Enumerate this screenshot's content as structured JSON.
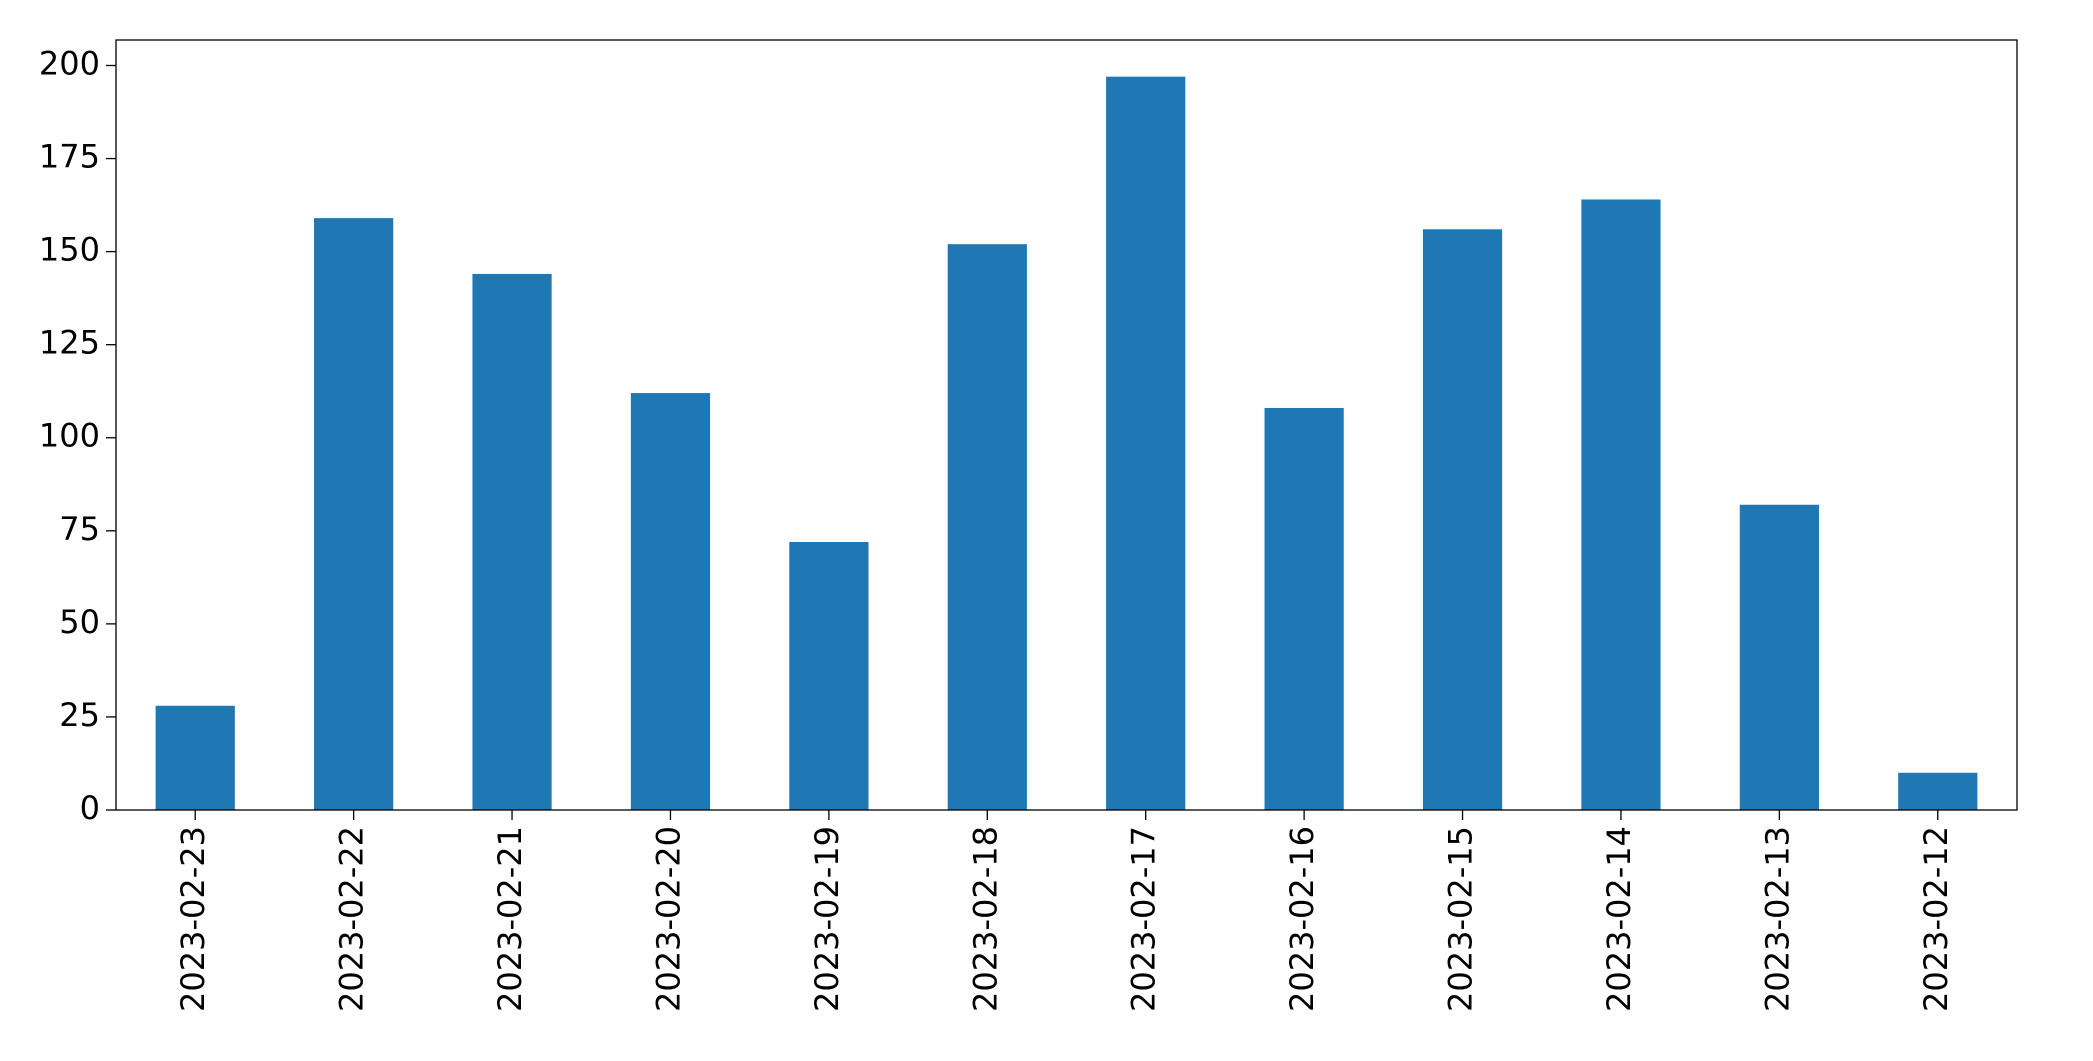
{
  "chart_data": {
    "type": "bar",
    "categories": [
      "2023-02-23",
      "2023-02-22",
      "2023-02-21",
      "2023-02-20",
      "2023-02-19",
      "2023-02-18",
      "2023-02-17",
      "2023-02-16",
      "2023-02-15",
      "2023-02-14",
      "2023-02-13",
      "2023-02-12"
    ],
    "values": [
      28,
      159,
      144,
      112,
      72,
      152,
      197,
      108,
      156,
      164,
      82,
      10
    ],
    "color": "#1f77b4",
    "ylim": [
      0,
      206.85
    ],
    "yticks": [
      0,
      25,
      50,
      75,
      100,
      125,
      150,
      175,
      200
    ],
    "grid": false
  }
}
